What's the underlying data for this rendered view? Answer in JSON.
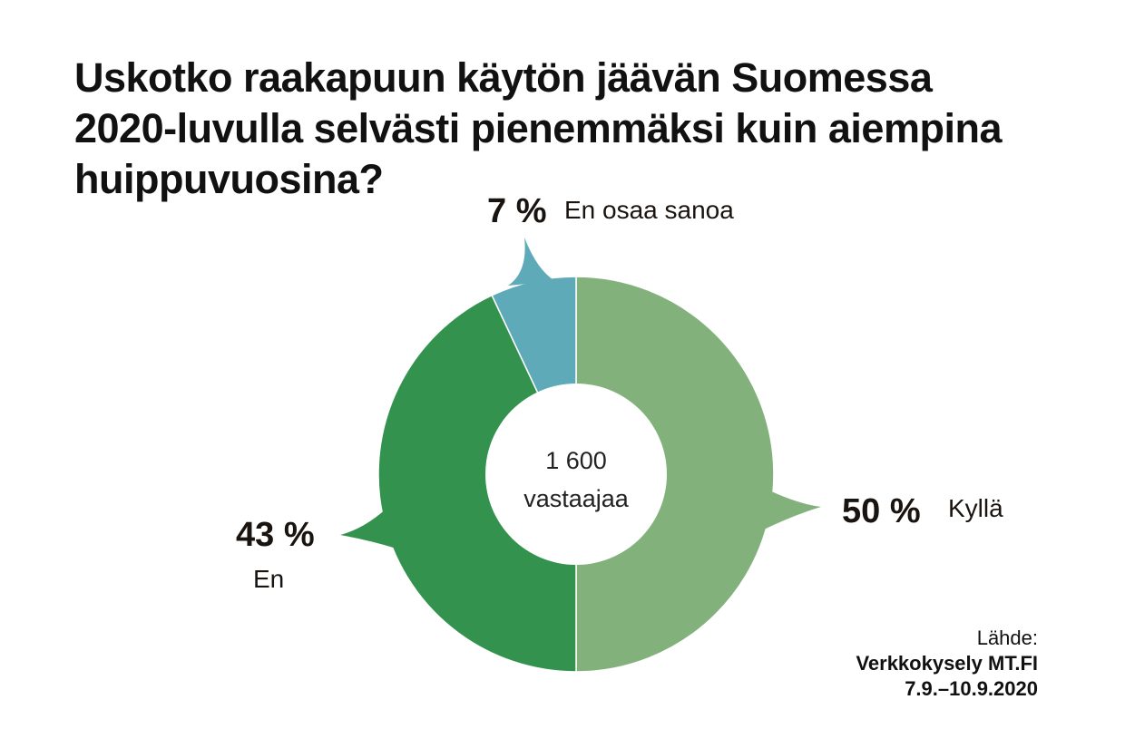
{
  "title_lines": [
    "Uskotko raakapuun käytön jäävän Suomessa",
    "2020-luvulla selvästi pienemmäksi kuin aiempina",
    "huippuvuosina?"
  ],
  "chart_data": {
    "type": "pie",
    "donut": true,
    "center_label": [
      "1 600",
      "vastaajaa"
    ],
    "slices": [
      {
        "label": "Kyllä",
        "value": 50,
        "value_label": "50 %",
        "color": "#82b17c"
      },
      {
        "label": "En",
        "value": 43,
        "value_label": "43 %",
        "color": "#33924e"
      },
      {
        "label": "En osaa sanoa",
        "value": 7,
        "value_label": "7 %",
        "color": "#5eaab8"
      }
    ]
  },
  "source": {
    "label": "Lähde:",
    "name": "Verkkokysely MT.FI",
    "date": "7.9.–10.9.2020"
  }
}
